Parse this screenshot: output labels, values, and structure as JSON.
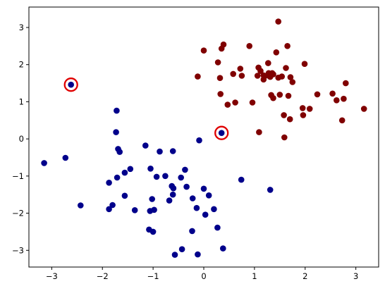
{
  "chart_data": {
    "type": "scatter",
    "title": "",
    "xlabel": "",
    "ylabel": "",
    "xlim": [
      -3.45,
      3.45
    ],
    "ylim": [
      -3.45,
      3.55
    ],
    "xticks": [
      -3,
      -2,
      -1,
      0,
      1,
      2,
      3
    ],
    "yticks": [
      3,
      2,
      1,
      0,
      -1,
      -2,
      -3
    ],
    "grid": false,
    "legend": "none",
    "series": [
      {
        "color": "#800000",
        "points": [
          [
            1.47,
            3.16
          ],
          [
            0.39,
            2.54
          ],
          [
            0.35,
            2.43
          ],
          [
            0.9,
            2.5
          ],
          [
            1.65,
            2.5
          ],
          [
            1.43,
            2.33
          ],
          [
            0.0,
            2.38
          ],
          [
            0.28,
            2.06
          ],
          [
            1.27,
            2.04
          ],
          [
            0.72,
            1.89
          ],
          [
            1.99,
            2.02
          ],
          [
            1.08,
            1.92
          ],
          [
            1.62,
            1.91
          ],
          [
            1.35,
            1.77
          ],
          [
            1.06,
            1.7
          ],
          [
            1.25,
            1.71
          ],
          [
            1.31,
            1.67
          ],
          [
            1.18,
            1.6
          ],
          [
            1.47,
            1.65
          ],
          [
            1.54,
            1.68
          ],
          [
            1.71,
            1.66
          ],
          [
            0.58,
            1.75
          ],
          [
            1.37,
            1.74
          ],
          [
            1.28,
            1.77
          ],
          [
            1.12,
            1.83
          ],
          [
            -0.12,
            1.68
          ],
          [
            0.32,
            1.64
          ],
          [
            0.75,
            1.7
          ],
          [
            1.75,
            1.53
          ],
          [
            2.8,
            1.5
          ],
          [
            1.18,
            1.71
          ],
          [
            0.33,
            1.21
          ],
          [
            1.33,
            1.18
          ],
          [
            1.5,
            1.19
          ],
          [
            1.67,
            1.16
          ],
          [
            2.24,
            1.2
          ],
          [
            2.54,
            1.22
          ],
          [
            2.76,
            1.08
          ],
          [
            2.62,
            1.04
          ],
          [
            1.37,
            1.1
          ],
          [
            0.96,
            0.98
          ],
          [
            0.47,
            0.92
          ],
          [
            0.62,
            0.98
          ],
          [
            1.95,
            0.83
          ],
          [
            2.09,
            0.81
          ],
          [
            3.16,
            0.81
          ],
          [
            1.58,
            0.64
          ],
          [
            1.96,
            0.64
          ],
          [
            1.7,
            0.53
          ],
          [
            2.73,
            0.5
          ],
          [
            1.09,
            0.18
          ],
          [
            1.59,
            0.04
          ]
        ]
      },
      {
        "color": "#00008b",
        "points": [
          [
            -2.62,
            1.46
          ],
          [
            -1.72,
            0.76
          ],
          [
            -1.73,
            0.18
          ],
          [
            0.35,
            0.16
          ],
          [
            -0.09,
            -0.04
          ],
          [
            -1.15,
            -0.18
          ],
          [
            -1.69,
            -0.27
          ],
          [
            -1.66,
            -0.35
          ],
          [
            -0.87,
            -0.34
          ],
          [
            -0.61,
            -0.33
          ],
          [
            -2.73,
            -0.51
          ],
          [
            -3.15,
            -0.65
          ],
          [
            -1.05,
            -0.8
          ],
          [
            -1.45,
            -0.81
          ],
          [
            -0.37,
            -0.83
          ],
          [
            -1.56,
            -0.91
          ],
          [
            -0.93,
            -1.02
          ],
          [
            -0.76,
            -1.0
          ],
          [
            -0.45,
            -1.04
          ],
          [
            -1.71,
            -1.04
          ],
          [
            0.74,
            -1.1
          ],
          [
            -1.87,
            -1.18
          ],
          [
            -0.63,
            -1.27
          ],
          [
            -0.34,
            -1.29
          ],
          [
            -0.6,
            -1.33
          ],
          [
            0.0,
            -1.34
          ],
          [
            1.31,
            -1.37
          ],
          [
            -0.61,
            -1.5
          ],
          [
            0.1,
            -1.52
          ],
          [
            -1.56,
            -1.53
          ],
          [
            -0.22,
            -1.6
          ],
          [
            -1.02,
            -1.62
          ],
          [
            -0.68,
            -1.66
          ],
          [
            -1.8,
            -1.78
          ],
          [
            -2.43,
            -1.79
          ],
          [
            -0.14,
            -1.86
          ],
          [
            -1.87,
            -1.89
          ],
          [
            0.2,
            -1.89
          ],
          [
            -1.36,
            -1.92
          ],
          [
            -0.98,
            -1.91
          ],
          [
            -1.06,
            -1.94
          ],
          [
            0.03,
            -2.04
          ],
          [
            -1.08,
            -2.44
          ],
          [
            -0.23,
            -2.48
          ],
          [
            -1.0,
            -2.5
          ],
          [
            0.27,
            -2.39
          ],
          [
            -0.43,
            -2.97
          ],
          [
            0.38,
            -2.95
          ],
          [
            -0.57,
            -3.12
          ],
          [
            -0.12,
            -3.11
          ]
        ]
      }
    ],
    "highlights": [
      {
        "x": -2.62,
        "y": 1.46,
        "color": "#e00000"
      },
      {
        "x": 0.35,
        "y": 0.16,
        "color": "#e00000"
      }
    ]
  }
}
